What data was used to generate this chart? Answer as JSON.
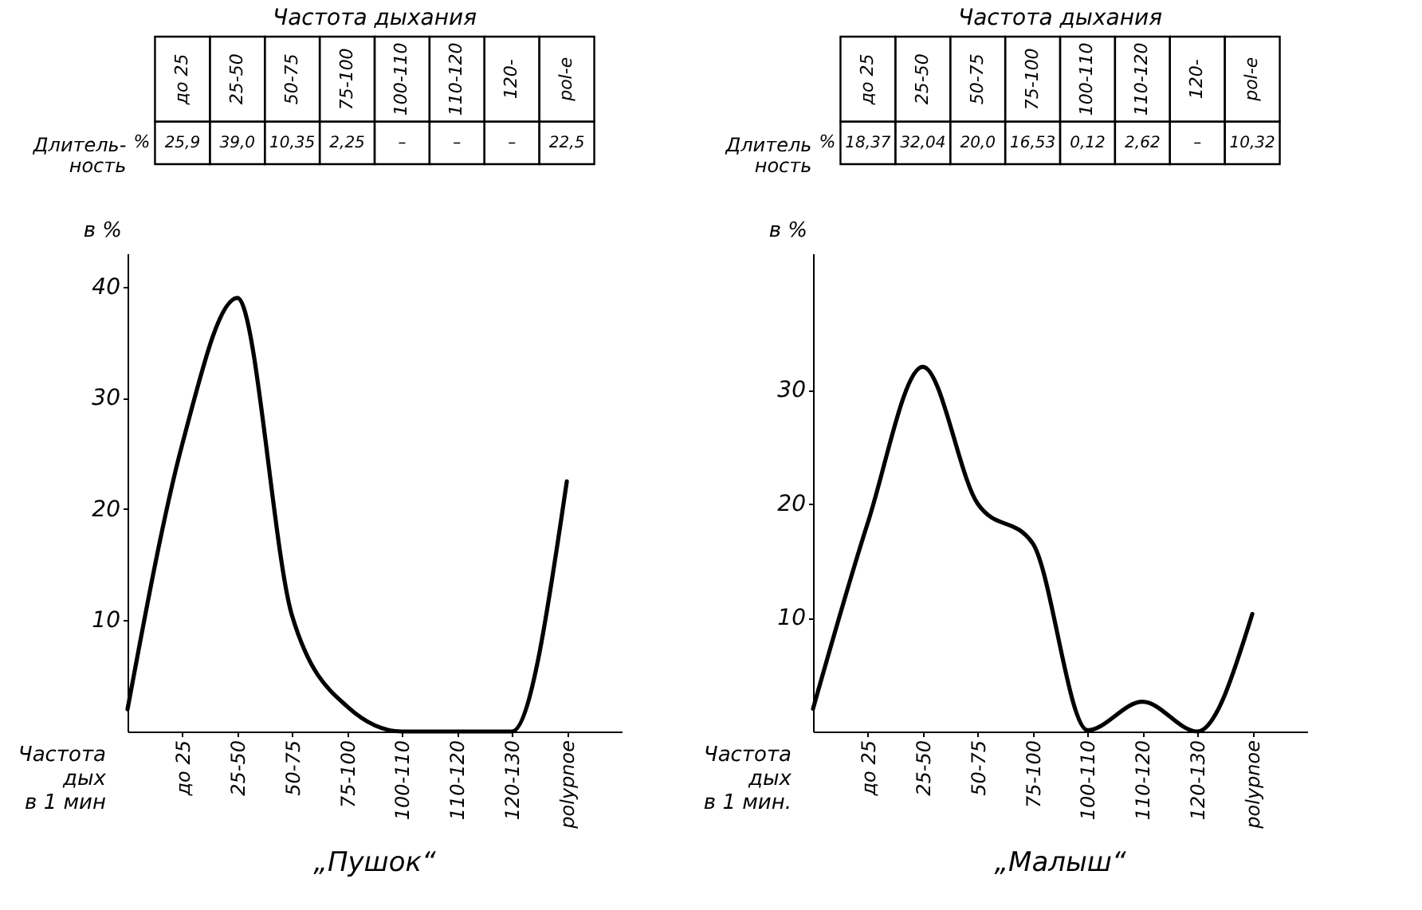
{
  "chart_data": [
    {
      "type": "line",
      "title": "„Пушок“",
      "xlabel": "Частота\nдых\nв 1 мин",
      "ylabel": "в %",
      "color": "#000000",
      "categories": [
        null,
        "до 25",
        "25-50",
        "50-75",
        "75-100",
        "100-110",
        "110-120",
        "120-130",
        "polypnoe"
      ],
      "values": [
        2,
        25.9,
        39.0,
        10.35,
        2.25,
        0,
        0,
        0,
        22.5
      ],
      "value_labels": [
        null,
        "25,9",
        "39,0",
        "10,35",
        "2,25",
        "–",
        "–",
        "–",
        "22,5"
      ],
      "ylim": [
        0,
        43
      ],
      "yticks": [
        10,
        20,
        30,
        40
      ],
      "annotations": [
        "Частота дыхания",
        "Длитель-\nность",
        "%",
        "до 25",
        "25-50",
        "50-75",
        "75-100",
        "100-110",
        "110-120",
        "120-",
        "pol-e"
      ]
    },
    {
      "type": "line",
      "title": "„Малыш“",
      "xlabel": "Частота\nдых\nв 1 мин.",
      "ylabel": "в %",
      "color": "#000000",
      "categories": [
        null,
        "до 25",
        "25-50",
        "50-75",
        "75-100",
        "100-110",
        "110-120",
        "120-130",
        "polypnoe"
      ],
      "values": [
        2,
        18.37,
        32.04,
        20.0,
        16.53,
        0.12,
        2.62,
        0,
        10.32
      ],
      "value_labels": [
        null,
        "18,37",
        "32,04",
        "20,0",
        "16,53",
        "0,12",
        "2,62",
        "–",
        "10,32"
      ],
      "ylim": [
        0,
        42
      ],
      "yticks": [
        10,
        20,
        30
      ],
      "annotations": [
        "Частота дыхания",
        "Длитель\nность",
        "%",
        "до 25",
        "25-50",
        "50-75",
        "75-100",
        "100-110",
        "110-120",
        "120-",
        "pol-e"
      ]
    }
  ]
}
